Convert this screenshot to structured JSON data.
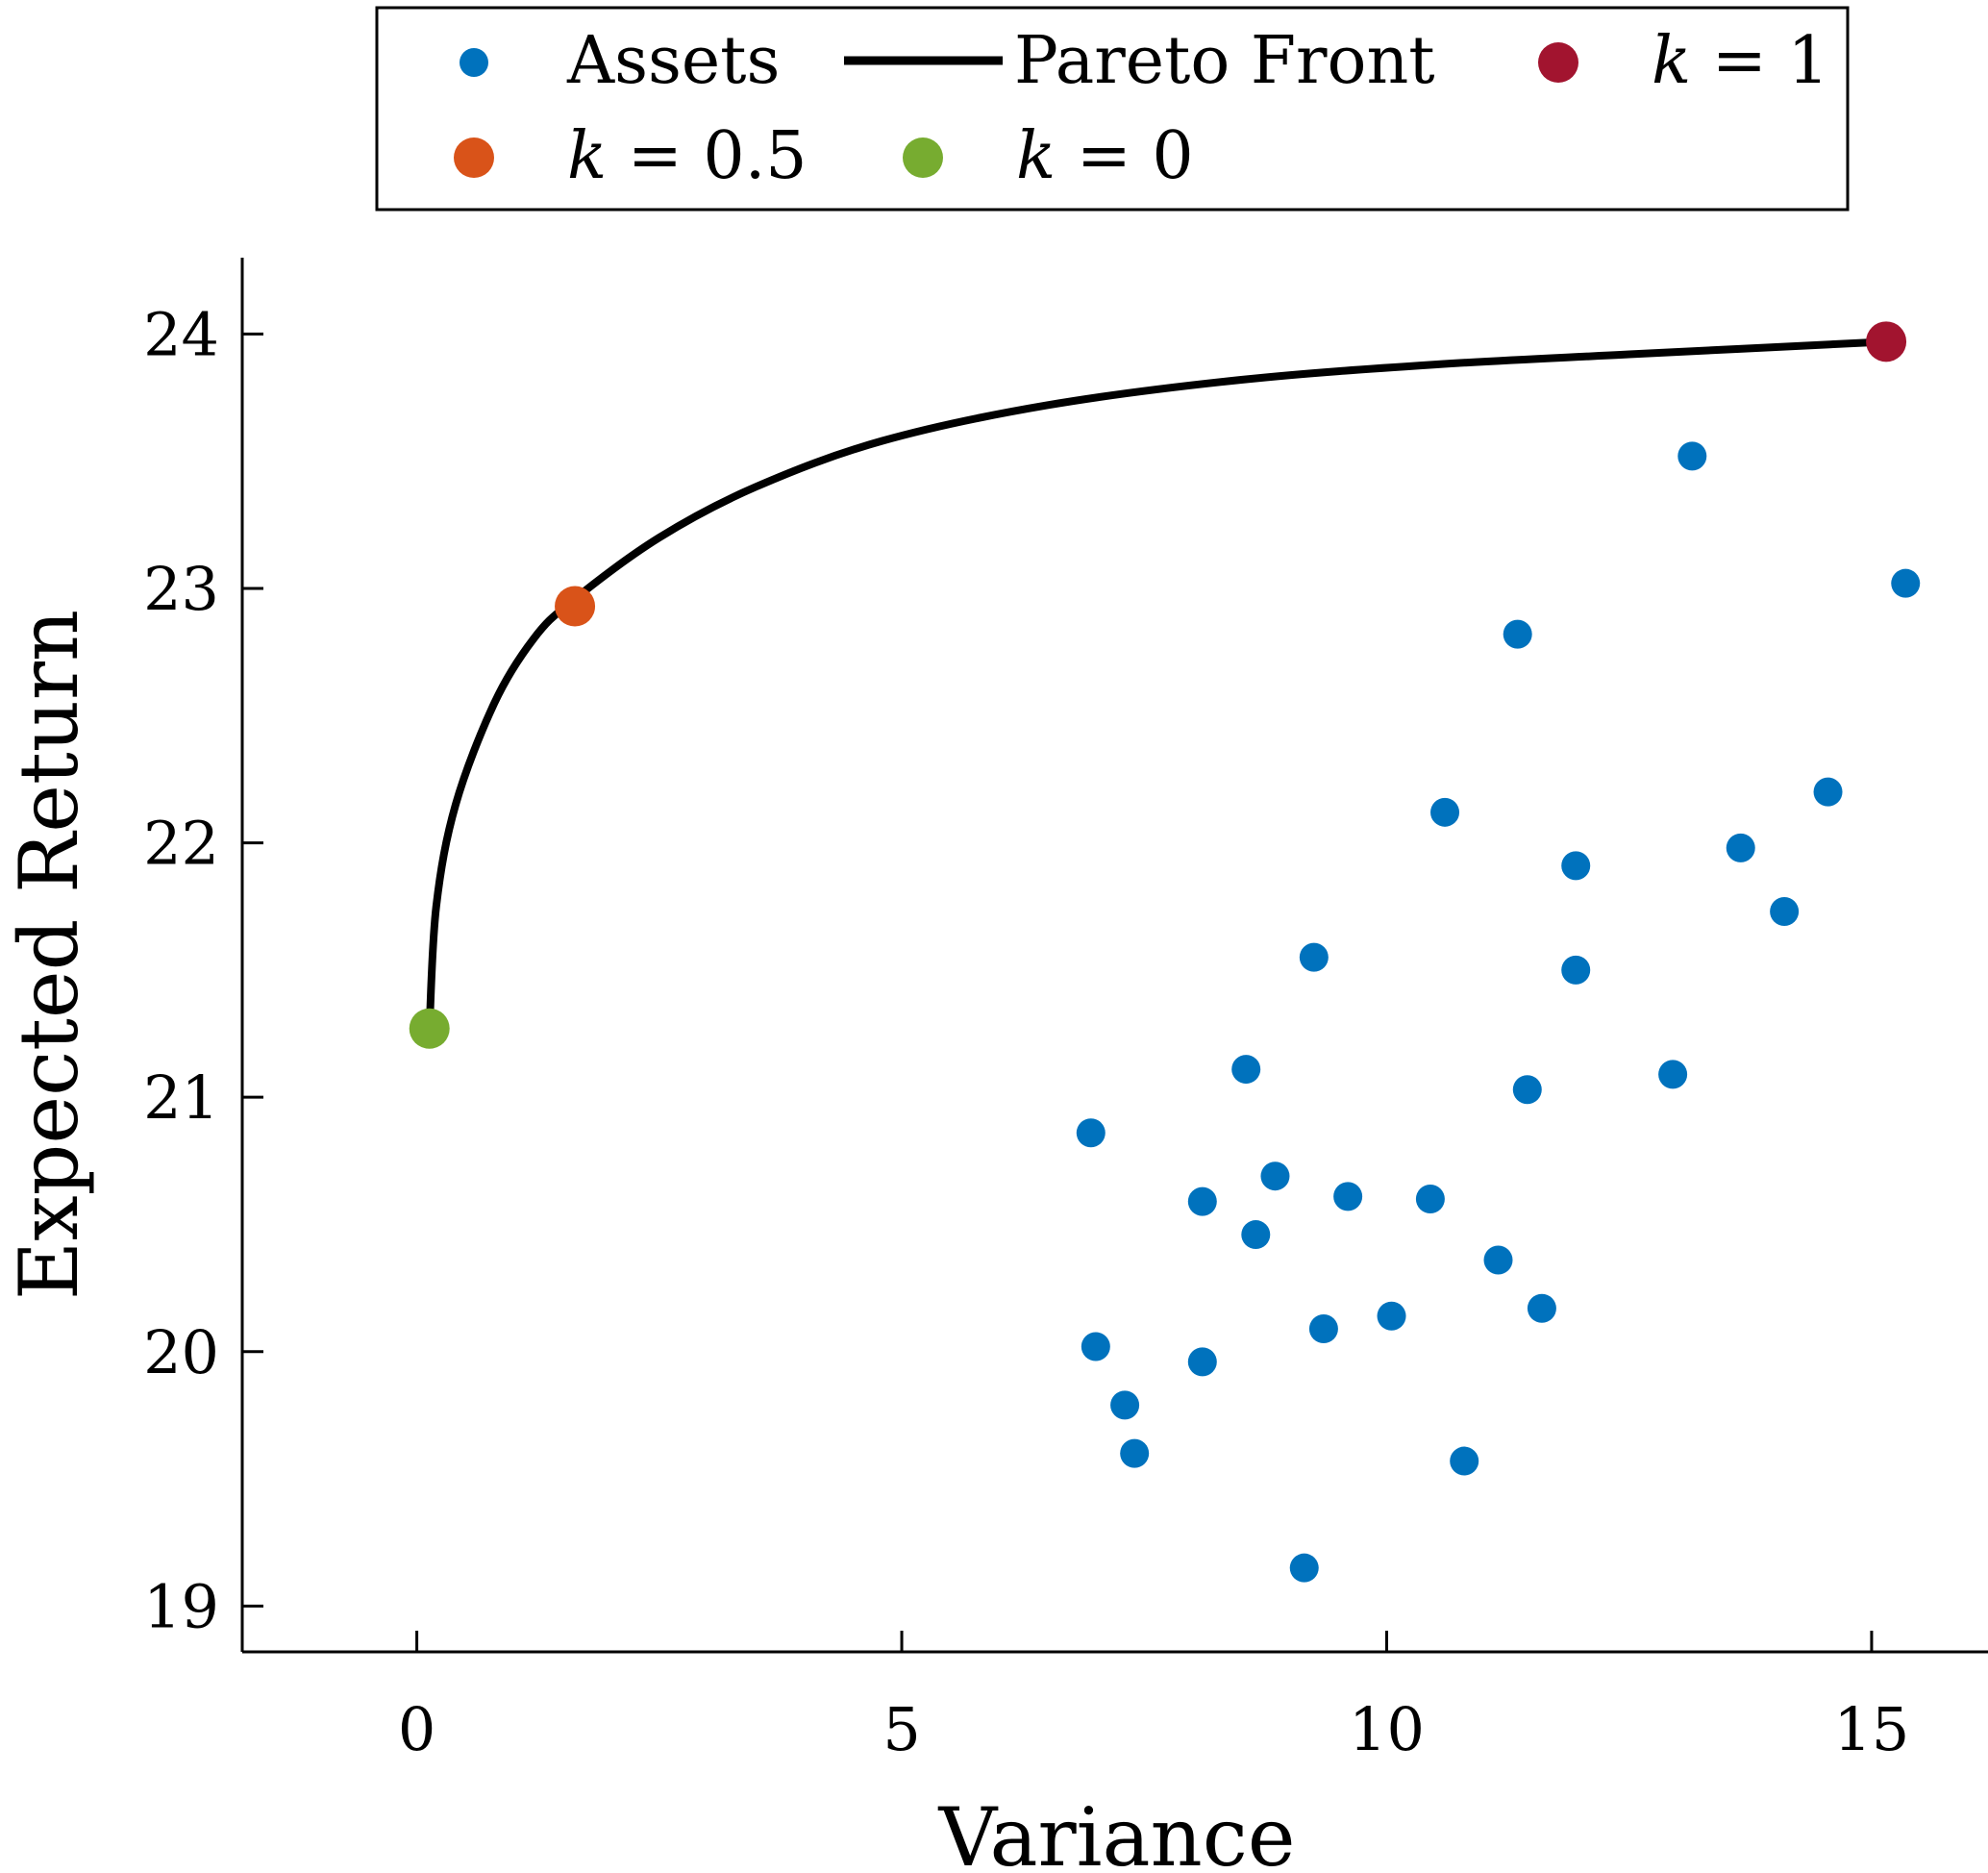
{
  "chart_data": {
    "type": "scatter",
    "title": "",
    "xlabel": "Variance",
    "ylabel": "Expected Return",
    "xlim": [
      -1.8,
      16.2
    ],
    "ylim": [
      18.82,
      24.3
    ],
    "xticks": [
      0,
      5,
      10,
      15
    ],
    "yticks": [
      19,
      20,
      21,
      22,
      23,
      24
    ],
    "grid": false,
    "legend_position": "top",
    "series": [
      {
        "name": "Assets",
        "kind": "scatter",
        "color": "#0072BD",
        "points": [
          [
            13.15,
            23.52
          ],
          [
            15.35,
            23.02
          ],
          [
            11.35,
            22.82
          ],
          [
            14.55,
            22.2
          ],
          [
            10.6,
            22.12
          ],
          [
            13.65,
            21.98
          ],
          [
            11.95,
            21.91
          ],
          [
            14.1,
            21.73
          ],
          [
            9.25,
            21.55
          ],
          [
            11.95,
            21.5
          ],
          [
            8.55,
            21.11
          ],
          [
            12.95,
            21.09
          ],
          [
            11.45,
            21.03
          ],
          [
            6.95,
            20.86
          ],
          [
            8.85,
            20.69
          ],
          [
            9.6,
            20.61
          ],
          [
            8.1,
            20.59
          ],
          [
            10.45,
            20.6
          ],
          [
            8.65,
            20.46
          ],
          [
            11.15,
            20.36
          ],
          [
            11.6,
            20.17
          ],
          [
            10.05,
            20.14
          ],
          [
            9.35,
            20.09
          ],
          [
            7.0,
            20.02
          ],
          [
            8.1,
            19.96
          ],
          [
            7.3,
            19.79
          ],
          [
            7.4,
            19.6
          ],
          [
            10.8,
            19.57
          ],
          [
            9.15,
            19.15
          ]
        ]
      },
      {
        "name": "Pareto Front",
        "kind": "line",
        "color": "#000000",
        "points": [
          [
            0.13,
            21.27
          ],
          [
            0.2,
            21.75
          ],
          [
            0.4,
            22.15
          ],
          [
            0.8,
            22.55
          ],
          [
            1.2,
            22.8
          ],
          [
            1.6,
            22.95
          ],
          [
            2.5,
            23.2
          ],
          [
            3.5,
            23.4
          ],
          [
            4.8,
            23.58
          ],
          [
            6.5,
            23.72
          ],
          [
            8.5,
            23.82
          ],
          [
            10.5,
            23.88
          ],
          [
            12.5,
            23.92
          ],
          [
            15.15,
            23.97
          ]
        ]
      },
      {
        "name": "k = 1",
        "kind": "marker",
        "color": "#A2142F",
        "points": [
          [
            15.15,
            23.97
          ]
        ]
      },
      {
        "name": "k = 0.5",
        "kind": "marker",
        "color": "#D95319",
        "points": [
          [
            1.63,
            22.93
          ]
        ]
      },
      {
        "name": "k = 0",
        "kind": "marker",
        "color": "#77AC30",
        "points": [
          [
            0.13,
            21.27
          ]
        ]
      }
    ],
    "legend": [
      {
        "label": "Assets",
        "marker": "dot",
        "color": "#0072BD"
      },
      {
        "label": "Pareto Front",
        "marker": "line",
        "color": "#000000"
      },
      {
        "label_prefix": "k",
        "label_suffix": " = 1",
        "marker": "bigdot",
        "color": "#A2142F"
      },
      {
        "label_prefix": "k",
        "label_suffix": " = 0.5",
        "marker": "bigdot",
        "color": "#D95319"
      },
      {
        "label_prefix": "k",
        "label_suffix": " = 0",
        "marker": "bigdot",
        "color": "#77AC30"
      }
    ]
  }
}
